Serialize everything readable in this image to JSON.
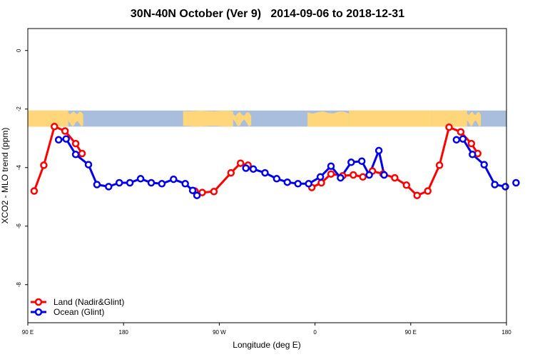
{
  "chart_data": {
    "type": "line",
    "title": "30N-40N October (Ver 9)   2014-09-06 to 2018-12-31",
    "xlabel": "Longitude (deg E)",
    "ylabel": "XCO2 - MLO trend (ppm)",
    "xlim": [
      90,
      540
    ],
    "ylim": [
      -9.3,
      0.75
    ],
    "x_ticks": [
      {
        "value": 90,
        "label": "90 E"
      },
      {
        "value": 180,
        "label": "180"
      },
      {
        "value": 270,
        "label": "90 W"
      },
      {
        "value": 360,
        "label": "0"
      },
      {
        "value": 450,
        "label": "90 E"
      },
      {
        "value": 540,
        "label": "180"
      }
    ],
    "y_ticks": [
      {
        "value": 0,
        "label": "0"
      },
      {
        "value": -2,
        "label": "-2"
      },
      {
        "value": -4,
        "label": "-4"
      },
      {
        "value": -6,
        "label": "-6"
      },
      {
        "value": -8,
        "label": "-8"
      }
    ],
    "grid": false,
    "legend_position": "bottom-left",
    "map_band": {
      "ymin": -2.6,
      "ymax": -2.05,
      "land_color": "#FFD77A",
      "ocean_color": "#A9BEDD"
    },
    "series": [
      {
        "name": "Land (Nadir&Glint)",
        "color": "#FF0000",
        "segments": [
          [
            [
              96,
              -4.8
            ],
            [
              105,
              -3.92
            ],
            [
              115,
              -2.6
            ],
            [
              125,
              -2.75
            ],
            [
              135,
              -3.18
            ],
            [
              141,
              -3.52
            ]
          ],
          [
            [
              247,
              -4.8
            ],
            [
              254,
              -4.85
            ],
            [
              265,
              -4.82
            ],
            [
              281,
              -4.18
            ],
            [
              290,
              -3.85
            ],
            [
              297,
              -3.92
            ]
          ],
          [
            [
              357,
              -4.68
            ],
            [
              366,
              -4.52
            ],
            [
              375,
              -4.22
            ],
            [
              386,
              -4.28
            ],
            [
              396,
              -4.25
            ],
            [
              405,
              -4.32
            ],
            [
              414,
              -4.12
            ],
            [
              424,
              -4.22
            ],
            [
              435,
              -4.35
            ],
            [
              446,
              -4.6
            ],
            [
              456,
              -4.95
            ],
            [
              466,
              -4.8
            ],
            [
              477,
              -3.92
            ],
            [
              486,
              -2.62
            ],
            [
              497,
              -2.78
            ],
            [
              507,
              -3.18
            ],
            [
              513,
              -3.52
            ]
          ]
        ]
      },
      {
        "name": "Ocean (Glint)",
        "color": "#0000EE",
        "segments": [
          [
            [
              119,
              -3.05
            ],
            [
              126,
              -3.02
            ],
            [
              135,
              -3.55
            ],
            [
              147,
              -3.9
            ],
            [
              155,
              -4.58
            ],
            [
              166,
              -4.65
            ],
            [
              176,
              -4.52
            ],
            [
              186,
              -4.52
            ],
            [
              196,
              -4.38
            ],
            [
              206,
              -4.52
            ],
            [
              216,
              -4.55
            ],
            [
              227,
              -4.4
            ],
            [
              238,
              -4.55
            ],
            [
              245,
              -4.78
            ],
            [
              249,
              -4.95
            ]
          ],
          [
            [
              295,
              -4.02
            ],
            [
              302,
              -4.05
            ],
            [
              313,
              -4.18
            ],
            [
              324,
              -4.38
            ],
            [
              334,
              -4.5
            ],
            [
              344,
              -4.55
            ],
            [
              354,
              -4.55
            ],
            [
              365,
              -4.32
            ],
            [
              375,
              -3.95
            ],
            [
              384,
              -4.35
            ],
            [
              394,
              -3.82
            ],
            [
              404,
              -3.78
            ],
            [
              411,
              -4.25
            ],
            [
              420,
              -3.42
            ],
            [
              425,
              -4.25
            ]
          ],
          [
            [
              493,
              -3.05
            ],
            [
              499,
              -3.02
            ],
            [
              508,
              -3.55
            ],
            [
              519,
              -3.9
            ],
            [
              529,
              -4.58
            ],
            [
              539,
              -4.65
            ],
            [
              549,
              -4.52
            ]
          ]
        ]
      }
    ]
  }
}
